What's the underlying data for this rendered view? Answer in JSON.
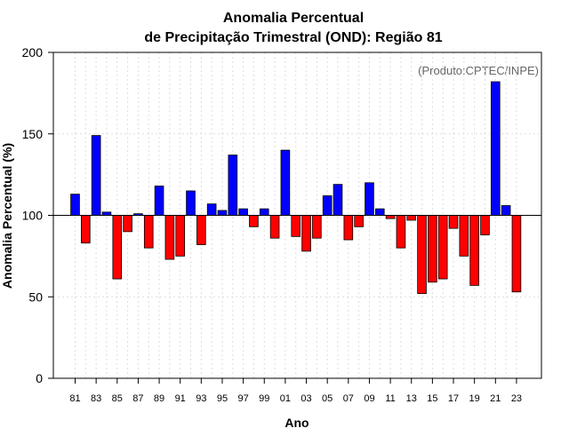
{
  "chart_data": {
    "type": "bar",
    "title_line1": "Anomalia Percentual",
    "title_line2": "de Precipitação Trimestral (OND): Região 81",
    "xlabel": "Ano",
    "ylabel": "Anomalia Percentual (%)",
    "credit": "(Produto:CPTEC/INPE)",
    "ylim": [
      0,
      200
    ],
    "yticks": [
      0,
      50,
      100,
      150,
      200
    ],
    "baseline": 100,
    "x_tick_labels": [
      "81",
      "83",
      "85",
      "87",
      "89",
      "91",
      "93",
      "95",
      "97",
      "99",
      "01",
      "03",
      "05",
      "07",
      "09",
      "11",
      "13",
      "15",
      "17",
      "19",
      "21",
      "23"
    ],
    "categories": [
      "1981",
      "1982",
      "1983",
      "1984",
      "1985",
      "1986",
      "1987",
      "1988",
      "1989",
      "1990",
      "1991",
      "1992",
      "1993",
      "1994",
      "1995",
      "1996",
      "1997",
      "1998",
      "1999",
      "2000",
      "2001",
      "2002",
      "2003",
      "2004",
      "2005",
      "2006",
      "2007",
      "2008",
      "2009",
      "2010",
      "2011",
      "2012",
      "2013",
      "2014",
      "2015",
      "2016",
      "2017",
      "2018",
      "2019",
      "2020",
      "2021",
      "2022",
      "2023"
    ],
    "values": [
      113,
      83,
      149,
      102,
      61,
      90,
      101,
      80,
      118,
      73,
      75,
      115,
      82,
      107,
      103,
      137,
      104,
      93,
      104,
      86,
      140,
      87,
      78,
      86,
      112,
      119,
      85,
      93,
      120,
      104,
      98,
      80,
      97,
      52,
      59,
      61,
      92,
      75,
      57,
      88,
      182,
      106,
      53
    ],
    "colors": {
      "above": "#0000ff",
      "below": "#ff0000",
      "grid": "#dddddd",
      "axis": "#000000"
    }
  }
}
